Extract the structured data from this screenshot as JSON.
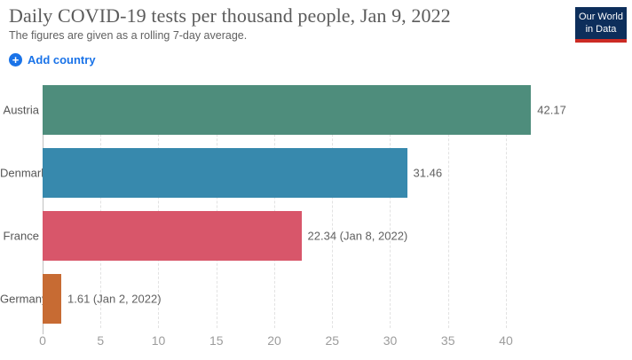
{
  "header": {
    "title": "Daily COVID-19 tests per thousand people, Jan 9, 2022",
    "subtitle": "The figures are given as a rolling 7-day average."
  },
  "logo": {
    "line1": "Our World",
    "line2": "in Data"
  },
  "controls": {
    "add_country_label": "Add country",
    "add_icon_glyph": "+"
  },
  "chart_data": {
    "type": "bar",
    "orientation": "horizontal",
    "title": "Daily COVID-19 tests per thousand people",
    "date": "Jan 9, 2022",
    "categories": [
      "Austria",
      "Denmark",
      "France",
      "Germany"
    ],
    "values": [
      42.17,
      31.46,
      22.34,
      1.61
    ],
    "value_labels": [
      "42.17",
      "31.46",
      "22.34 (Jan 8, 2022)",
      "1.61 (Jan 2, 2022)"
    ],
    "bar_colors": [
      "#4E8D7C",
      "#3789AD",
      "#D8566A",
      "#C76B33"
    ],
    "x_ticks": [
      0,
      5,
      10,
      15,
      20,
      25,
      30,
      35,
      40
    ],
    "xlim": [
      0,
      50.5
    ],
    "grid": "vertical-dashed",
    "legend": "none",
    "xlabel": "",
    "ylabel": ""
  },
  "colors": {
    "accent_blue": "#1A73E8",
    "logo_bg": "#0D2E5B",
    "logo_stripe": "#CC2B24"
  }
}
